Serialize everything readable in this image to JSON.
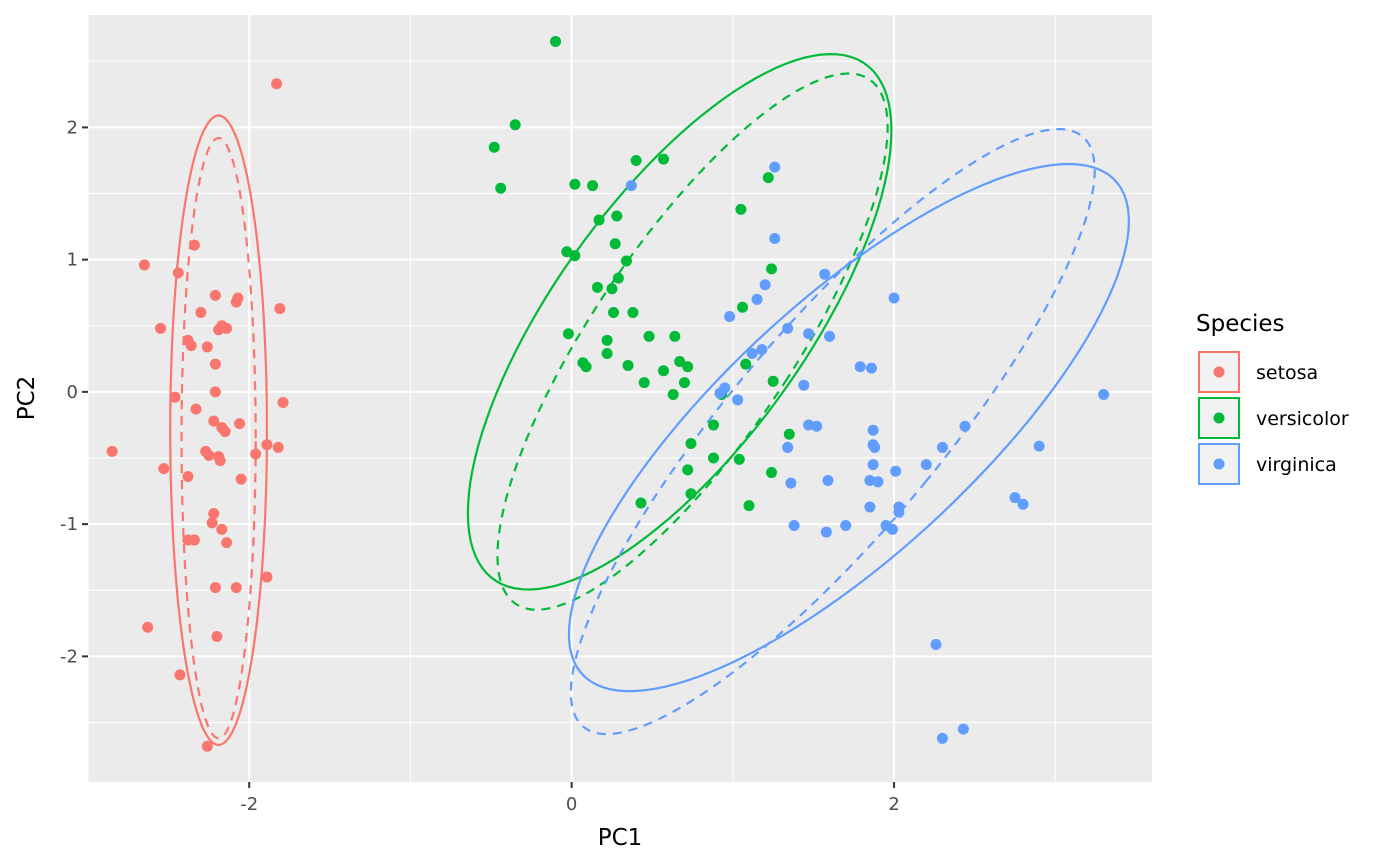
{
  "chart_data": {
    "type": "scatter",
    "xlabel": "PC1",
    "ylabel": "PC2",
    "xlim": [
      -3.0,
      3.6
    ],
    "ylim": [
      -2.95,
      2.85
    ],
    "x_ticks": [
      -2,
      0,
      2
    ],
    "y_ticks": [
      -2,
      -1,
      0,
      1,
      2
    ],
    "grid": true,
    "legend": {
      "title": "Species",
      "position": "right"
    },
    "series": [
      {
        "name": "setosa",
        "color": "#F8766D",
        "points": [
          [
            -1.83,
            2.33
          ],
          [
            -2.34,
            1.11
          ],
          [
            -2.65,
            0.96
          ],
          [
            -2.44,
            0.9
          ],
          [
            -2.21,
            0.73
          ],
          [
            -2.07,
            0.71
          ],
          [
            -2.08,
            0.68
          ],
          [
            -1.81,
            0.63
          ],
          [
            -2.3,
            0.6
          ],
          [
            -2.17,
            0.5
          ],
          [
            -2.14,
            0.48
          ],
          [
            -2.19,
            0.47
          ],
          [
            -2.55,
            0.48
          ],
          [
            -2.26,
            0.34
          ],
          [
            -2.38,
            0.39
          ],
          [
            -2.36,
            0.35
          ],
          [
            -2.21,
            0.21
          ],
          [
            -2.21,
            0.0
          ],
          [
            -2.46,
            -0.04
          ],
          [
            -2.33,
            -0.13
          ],
          [
            -1.79,
            -0.08
          ],
          [
            -2.06,
            -0.24
          ],
          [
            -2.22,
            -0.22
          ],
          [
            -2.17,
            -0.27
          ],
          [
            -2.15,
            -0.3
          ],
          [
            -1.89,
            -0.4
          ],
          [
            -1.82,
            -0.42
          ],
          [
            -1.96,
            -0.47
          ],
          [
            -2.27,
            -0.45
          ],
          [
            -2.25,
            -0.48
          ],
          [
            -2.19,
            -0.49
          ],
          [
            -2.18,
            -0.52
          ],
          [
            -2.85,
            -0.45
          ],
          [
            -2.53,
            -0.58
          ],
          [
            -2.38,
            -0.64
          ],
          [
            -2.05,
            -0.66
          ],
          [
            -2.22,
            -0.92
          ],
          [
            -2.23,
            -0.99
          ],
          [
            -2.17,
            -1.04
          ],
          [
            -2.38,
            -1.12
          ],
          [
            -2.34,
            -1.12
          ],
          [
            -2.14,
            -1.14
          ],
          [
            -1.89,
            -1.4
          ],
          [
            -2.21,
            -1.48
          ],
          [
            -2.08,
            -1.48
          ],
          [
            -2.63,
            -1.78
          ],
          [
            -2.2,
            -1.85
          ],
          [
            -2.43,
            -2.14
          ],
          [
            -2.26,
            -2.68
          ]
        ],
        "ellipses": [
          {
            "center": [
              -2.19,
              -0.29
            ],
            "semi_axes": [
              0.3,
              2.38
            ],
            "angle_deg": 0,
            "style": "solid"
          },
          {
            "center": [
              -2.19,
              -0.35
            ],
            "semi_axes": [
              0.23,
              2.27
            ],
            "angle_deg": 0,
            "style": "dashed"
          }
        ]
      },
      {
        "name": "versicolor",
        "color": "#00BA38",
        "points": [
          [
            -0.1,
            2.65
          ],
          [
            -0.35,
            2.02
          ],
          [
            -0.48,
            1.85
          ],
          [
            -0.44,
            1.54
          ],
          [
            0.4,
            1.75
          ],
          [
            0.57,
            1.76
          ],
          [
            1.22,
            1.62
          ],
          [
            0.02,
            1.57
          ],
          [
            0.13,
            1.56
          ],
          [
            1.05,
            1.38
          ],
          [
            0.28,
            1.33
          ],
          [
            0.17,
            1.3
          ],
          [
            0.27,
            1.12
          ],
          [
            -0.03,
            1.06
          ],
          [
            0.02,
            1.03
          ],
          [
            0.34,
            0.99
          ],
          [
            1.24,
            0.93
          ],
          [
            0.29,
            0.86
          ],
          [
            0.16,
            0.79
          ],
          [
            0.25,
            0.78
          ],
          [
            1.06,
            0.64
          ],
          [
            0.26,
            0.6
          ],
          [
            0.38,
            0.6
          ],
          [
            -0.02,
            0.44
          ],
          [
            0.48,
            0.42
          ],
          [
            0.64,
            0.42
          ],
          [
            0.22,
            0.39
          ],
          [
            0.22,
            0.29
          ],
          [
            0.67,
            0.23
          ],
          [
            0.72,
            0.19
          ],
          [
            0.57,
            0.16
          ],
          [
            0.35,
            0.2
          ],
          [
            1.08,
            0.21
          ],
          [
            0.07,
            0.22
          ],
          [
            0.09,
            0.19
          ],
          [
            0.7,
            0.07
          ],
          [
            0.45,
            0.07
          ],
          [
            1.25,
            0.08
          ],
          [
            0.63,
            -0.02
          ],
          [
            0.93,
            -0.02
          ],
          [
            0.88,
            -0.25
          ],
          [
            1.35,
            -0.32
          ],
          [
            0.74,
            -0.39
          ],
          [
            0.72,
            -0.59
          ],
          [
            0.88,
            -0.5
          ],
          [
            1.04,
            -0.51
          ],
          [
            1.24,
            -0.61
          ],
          [
            0.74,
            -0.77
          ],
          [
            1.1,
            -0.86
          ],
          [
            0.43,
            -0.84
          ]
        ],
        "ellipses": [
          {
            "center": [
              0.67,
              0.53
            ],
            "semi_axes": [
              0.82,
              2.27
            ],
            "angle_deg": 29,
            "style": "solid"
          },
          {
            "center": [
              0.75,
              0.38
            ],
            "semi_axes": [
              0.65,
              2.27
            ],
            "angle_deg": 28,
            "style": "dashed"
          }
        ]
      },
      {
        "name": "virginica",
        "color": "#619CFF",
        "points": [
          [
            1.26,
            1.7
          ],
          [
            0.37,
            1.56
          ],
          [
            1.26,
            1.16
          ],
          [
            1.57,
            0.89
          ],
          [
            1.2,
            0.81
          ],
          [
            1.15,
            0.7
          ],
          [
            2.0,
            0.71
          ],
          [
            0.98,
            0.57
          ],
          [
            1.34,
            0.48
          ],
          [
            1.47,
            0.44
          ],
          [
            1.6,
            0.42
          ],
          [
            1.18,
            0.32
          ],
          [
            1.12,
            0.29
          ],
          [
            1.79,
            0.19
          ],
          [
            1.86,
            0.18
          ],
          [
            1.44,
            0.05
          ],
          [
            0.95,
            0.03
          ],
          [
            0.92,
            -0.01
          ],
          [
            1.03,
            -0.06
          ],
          [
            3.3,
            -0.02
          ],
          [
            1.47,
            -0.25
          ],
          [
            1.52,
            -0.26
          ],
          [
            2.44,
            -0.26
          ],
          [
            1.87,
            -0.29
          ],
          [
            1.34,
            -0.42
          ],
          [
            1.87,
            -0.4
          ],
          [
            1.88,
            -0.42
          ],
          [
            2.3,
            -0.42
          ],
          [
            2.9,
            -0.41
          ],
          [
            1.87,
            -0.55
          ],
          [
            2.2,
            -0.55
          ],
          [
            2.01,
            -0.6
          ],
          [
            1.36,
            -0.69
          ],
          [
            1.59,
            -0.67
          ],
          [
            1.85,
            -0.67
          ],
          [
            1.9,
            -0.68
          ],
          [
            1.85,
            -0.87
          ],
          [
            2.03,
            -0.87
          ],
          [
            2.03,
            -0.91
          ],
          [
            2.75,
            -0.8
          ],
          [
            2.8,
            -0.85
          ],
          [
            1.38,
            -1.01
          ],
          [
            1.7,
            -1.01
          ],
          [
            1.95,
            -1.01
          ],
          [
            1.99,
            -1.04
          ],
          [
            1.58,
            -1.06
          ],
          [
            2.26,
            -1.91
          ],
          [
            2.3,
            -2.62
          ],
          [
            2.43,
            -2.55
          ]
        ],
        "ellipses": [
          {
            "center": [
              1.72,
              -0.27
            ],
            "semi_axes": [
              0.86,
              2.5
            ],
            "angle_deg": 40,
            "style": "solid"
          },
          {
            "center": [
              1.62,
              -0.3
            ],
            "semi_axes": [
              0.69,
              2.72
            ],
            "angle_deg": 34,
            "style": "dashed"
          }
        ]
      }
    ]
  }
}
